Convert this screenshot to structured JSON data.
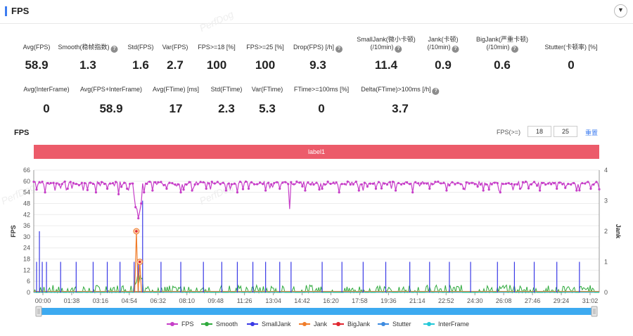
{
  "header": {
    "title": "FPS",
    "collapse_icon": "chevron-down-icon",
    "accent": "#3d7cf0"
  },
  "watermark": "PerfDog",
  "metrics_row1": [
    {
      "label": "Avg(FPS)",
      "value": "58.9",
      "help": false
    },
    {
      "label": "Smooth(稳帧指数)",
      "value": "1.3",
      "help": true
    },
    {
      "label": "Std(FPS)",
      "value": "1.6",
      "help": false
    },
    {
      "label": "Var(FPS)",
      "value": "2.7",
      "help": false
    },
    {
      "label": "FPS>=18 [%]",
      "value": "100",
      "help": false
    },
    {
      "label": "FPS>=25 [%]",
      "value": "100",
      "help": false
    },
    {
      "label": "Drop(FPS) [/h]",
      "value": "9.3",
      "help": true
    },
    {
      "label": "SmallJank(微小卡顿)",
      "label2": "(/10min)",
      "value": "11.4",
      "help": true
    },
    {
      "label": "Jank(卡顿)",
      "label2": "(/10min)",
      "value": "0.9",
      "help": true
    },
    {
      "label": "BigJank(严重卡顿)",
      "label2": "(/10min)",
      "value": "0.6",
      "help": true
    },
    {
      "label": "Stutter(卡顿率) [%]",
      "value": "0",
      "help": false
    }
  ],
  "metrics_row2": [
    {
      "label": "Avg(InterFrame)",
      "value": "0",
      "help": false
    },
    {
      "label": "Avg(FPS+InterFrame)",
      "value": "58.9",
      "help": false
    },
    {
      "label": "Avg(FTime) [ms]",
      "value": "17",
      "help": false
    },
    {
      "label": "Std(FTime)",
      "value": "2.3",
      "help": false
    },
    {
      "label": "Var(FTime)",
      "value": "5.3",
      "help": false
    },
    {
      "label": "FTime>=100ms [%]",
      "value": "0",
      "help": false
    },
    {
      "label": "Delta(FTime)>100ms [/h]",
      "value": "3.7",
      "help": true
    }
  ],
  "chart_controls": {
    "title": "FPS",
    "threshold_label": "FPS(>=)",
    "threshold1": "18",
    "threshold2": "25",
    "reset_label": "重置"
  },
  "label_band": {
    "text": "label1",
    "color": "#ec5b6a"
  },
  "chart_data": {
    "type": "line",
    "title": "FPS",
    "ylabel": "FPS",
    "y2label": "Jank",
    "ylim": [
      0,
      66
    ],
    "y2lim": [
      0,
      4
    ],
    "y_ticks": [
      "0",
      "6",
      "12",
      "18",
      "24",
      "30",
      "36",
      "42",
      "48",
      "54",
      "60",
      "66"
    ],
    "y2_ticks": [
      "0",
      "1",
      "2",
      "3",
      "4"
    ],
    "x_ticks": [
      "00:00",
      "01:38",
      "03:16",
      "04:54",
      "06:32",
      "08:10",
      "09:48",
      "11:26",
      "13:04",
      "14:42",
      "16:20",
      "17:58",
      "19:36",
      "21:14",
      "22:52",
      "24:30",
      "26:08",
      "27:46",
      "29:24",
      "31:02"
    ],
    "x_range_seconds": [
      0,
      2000
    ],
    "fps_baseline": 59,
    "fps_dips": [
      [
        40,
        54
      ],
      [
        75,
        55
      ],
      [
        120,
        56
      ],
      [
        175,
        55
      ],
      [
        220,
        54
      ],
      [
        260,
        56
      ],
      [
        300,
        53
      ],
      [
        330,
        56
      ],
      [
        355,
        52
      ],
      [
        360,
        46
      ],
      [
        365,
        45
      ],
      [
        370,
        40
      ],
      [
        375,
        44
      ],
      [
        380,
        48
      ],
      [
        390,
        54
      ],
      [
        420,
        55
      ],
      [
        470,
        56
      ],
      [
        520,
        54
      ],
      [
        560,
        55
      ],
      [
        610,
        56
      ],
      [
        680,
        55
      ],
      [
        720,
        54
      ],
      [
        760,
        56
      ],
      [
        820,
        55
      ],
      [
        870,
        56
      ],
      [
        905,
        45
      ],
      [
        960,
        55
      ],
      [
        1020,
        56
      ],
      [
        1080,
        54
      ],
      [
        1150,
        55
      ],
      [
        1210,
        56
      ],
      [
        1280,
        55
      ],
      [
        1340,
        54
      ],
      [
        1400,
        56
      ],
      [
        1460,
        55
      ],
      [
        1520,
        56
      ],
      [
        1590,
        55
      ],
      [
        1650,
        54
      ],
      [
        1720,
        56
      ],
      [
        1790,
        55
      ],
      [
        1850,
        56
      ],
      [
        1920,
        55
      ],
      [
        1970,
        56
      ]
    ],
    "series": [
      {
        "name": "FPS",
        "color": "#c63ec8",
        "axis": "left"
      },
      {
        "name": "Smooth",
        "color": "#2eaa3c",
        "axis": "left"
      },
      {
        "name": "SmallJank",
        "color": "#3939e6",
        "axis": "right",
        "spikes": [
          [
            10,
            1
          ],
          [
            20,
            2
          ],
          [
            30,
            1
          ],
          [
            45,
            1
          ],
          [
            95,
            1
          ],
          [
            150,
            1
          ],
          [
            210,
            1
          ],
          [
            260,
            1
          ],
          [
            305,
            1
          ],
          [
            355,
            1
          ],
          [
            370,
            1
          ],
          [
            385,
            3
          ],
          [
            450,
            1
          ],
          [
            520,
            1
          ],
          [
            600,
            1
          ],
          [
            665,
            1
          ],
          [
            720,
            1
          ],
          [
            775,
            1
          ],
          [
            820,
            1
          ],
          [
            870,
            1
          ],
          [
            910,
            1
          ],
          [
            1020,
            1
          ],
          [
            1090,
            1
          ],
          [
            1165,
            1
          ],
          [
            1245,
            1
          ],
          [
            1330,
            1
          ],
          [
            1400,
            1
          ],
          [
            1470,
            1
          ],
          [
            1545,
            1
          ],
          [
            1640,
            1
          ],
          [
            1700,
            1
          ],
          [
            1770,
            1
          ],
          [
            1850,
            1
          ],
          [
            1930,
            1
          ]
        ]
      },
      {
        "name": "Jank",
        "color": "#f07c2a",
        "axis": "right",
        "points": [
          [
            363,
            2
          ],
          [
            375,
            1
          ]
        ]
      },
      {
        "name": "BigJank",
        "color": "#e0262f",
        "axis": "right",
        "points": [
          [
            363,
            2
          ],
          [
            375,
            1
          ]
        ]
      },
      {
        "name": "Stutter",
        "color": "#3d8be0",
        "axis": "right"
      },
      {
        "name": "InterFrame",
        "color": "#24c8d8",
        "axis": "right"
      }
    ]
  }
}
